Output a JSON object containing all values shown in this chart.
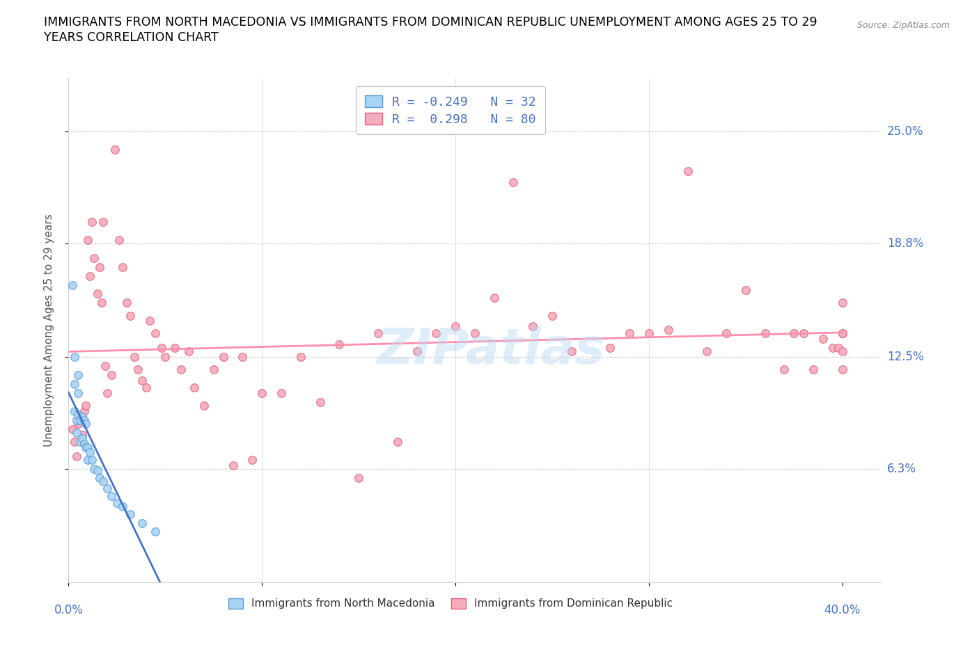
{
  "title_line1": "IMMIGRANTS FROM NORTH MACEDONIA VS IMMIGRANTS FROM DOMINICAN REPUBLIC UNEMPLOYMENT AMONG AGES 25 TO 29",
  "title_line2": "YEARS CORRELATION CHART",
  "source": "Source: ZipAtlas.com",
  "ylabel": "Unemployment Among Ages 25 to 29 years",
  "ytick_labels": [
    "25.0%",
    "18.8%",
    "12.5%",
    "6.3%"
  ],
  "ytick_values": [
    0.25,
    0.188,
    0.125,
    0.063
  ],
  "xtick_labels": [
    "0.0%",
    "",
    "",
    "",
    "40.0%"
  ],
  "xtick_values": [
    0.0,
    0.1,
    0.2,
    0.3,
    0.4
  ],
  "xlim": [
    0.0,
    0.42
  ],
  "ylim": [
    0.0,
    0.28
  ],
  "legend_line1": "R = -0.249   N = 32",
  "legend_line2": "R =  0.298   N = 80",
  "color_macedonia_fill": "#A8D4F5",
  "color_macedonia_edge": "#5B9BD5",
  "color_dominican_fill": "#F4ABBA",
  "color_dominican_edge": "#E06080",
  "color_mac_trend": "#4472C4",
  "color_dom_trend": "#FF8FAB",
  "color_mac_trend_ext": "#C0C0C0",
  "color_text_blue": "#4472C4",
  "color_grid": "#D0D0D0",
  "watermark": "ZIPatlas",
  "mac_x": [
    0.002,
    0.003,
    0.003,
    0.003,
    0.004,
    0.004,
    0.005,
    0.005,
    0.005,
    0.006,
    0.006,
    0.007,
    0.007,
    0.008,
    0.008,
    0.009,
    0.009,
    0.01,
    0.01,
    0.011,
    0.012,
    0.013,
    0.015,
    0.016,
    0.018,
    0.02,
    0.022,
    0.025,
    0.028,
    0.032,
    0.038,
    0.045
  ],
  "mac_y": [
    0.165,
    0.125,
    0.11,
    0.095,
    0.09,
    0.083,
    0.115,
    0.105,
    0.093,
    0.09,
    0.078,
    0.092,
    0.08,
    0.09,
    0.077,
    0.088,
    0.075,
    0.075,
    0.068,
    0.072,
    0.068,
    0.063,
    0.062,
    0.058,
    0.056,
    0.052,
    0.048,
    0.044,
    0.042,
    0.038,
    0.033,
    0.028
  ],
  "dom_x": [
    0.002,
    0.003,
    0.004,
    0.005,
    0.006,
    0.007,
    0.008,
    0.009,
    0.01,
    0.011,
    0.012,
    0.013,
    0.015,
    0.016,
    0.017,
    0.018,
    0.019,
    0.02,
    0.022,
    0.024,
    0.026,
    0.028,
    0.03,
    0.032,
    0.034,
    0.036,
    0.038,
    0.04,
    0.042,
    0.045,
    0.048,
    0.05,
    0.055,
    0.058,
    0.062,
    0.065,
    0.07,
    0.075,
    0.08,
    0.085,
    0.09,
    0.095,
    0.1,
    0.11,
    0.12,
    0.13,
    0.14,
    0.15,
    0.16,
    0.17,
    0.18,
    0.19,
    0.2,
    0.21,
    0.22,
    0.23,
    0.24,
    0.25,
    0.26,
    0.28,
    0.29,
    0.3,
    0.31,
    0.32,
    0.33,
    0.34,
    0.35,
    0.36,
    0.37,
    0.375,
    0.38,
    0.385,
    0.39,
    0.395,
    0.398,
    0.4,
    0.4,
    0.4,
    0.4,
    0.4
  ],
  "dom_y": [
    0.085,
    0.078,
    0.07,
    0.088,
    0.092,
    0.082,
    0.095,
    0.098,
    0.19,
    0.17,
    0.2,
    0.18,
    0.16,
    0.175,
    0.155,
    0.2,
    0.12,
    0.105,
    0.115,
    0.24,
    0.19,
    0.175,
    0.155,
    0.148,
    0.125,
    0.118,
    0.112,
    0.108,
    0.145,
    0.138,
    0.13,
    0.125,
    0.13,
    0.118,
    0.128,
    0.108,
    0.098,
    0.118,
    0.125,
    0.065,
    0.125,
    0.068,
    0.105,
    0.105,
    0.125,
    0.1,
    0.132,
    0.058,
    0.138,
    0.078,
    0.128,
    0.138,
    0.142,
    0.138,
    0.158,
    0.222,
    0.142,
    0.148,
    0.128,
    0.13,
    0.138,
    0.138,
    0.14,
    0.228,
    0.128,
    0.138,
    0.162,
    0.138,
    0.118,
    0.138,
    0.138,
    0.118,
    0.135,
    0.13,
    0.13,
    0.138,
    0.155,
    0.138,
    0.118,
    0.128
  ]
}
